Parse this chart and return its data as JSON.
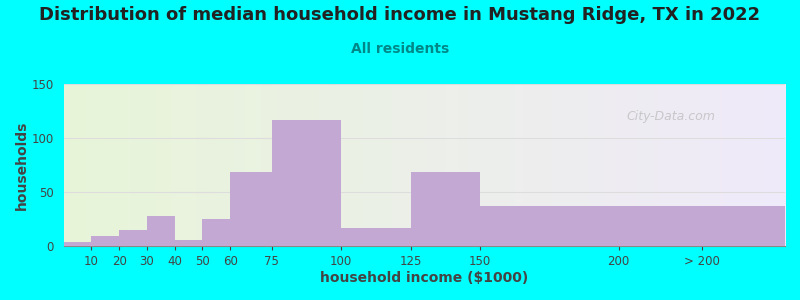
{
  "title": "Distribution of median household income in Mustang Ridge, TX in 2022",
  "subtitle": "All residents",
  "xlabel": "household income ($1000)",
  "ylabel": "households",
  "background_color": "#00FFFF",
  "bar_color": "#C4A8D4",
  "bar_left_edges": [
    0,
    10,
    20,
    30,
    40,
    50,
    60,
    75,
    100,
    125,
    150,
    200
  ],
  "bar_widths": [
    10,
    10,
    10,
    10,
    10,
    10,
    15,
    25,
    25,
    25,
    50,
    60
  ],
  "values": [
    4,
    9,
    15,
    28,
    6,
    25,
    69,
    117,
    17,
    69,
    37,
    37
  ],
  "ylim": [
    0,
    150
  ],
  "yticks": [
    0,
    50,
    100,
    150
  ],
  "xtick_positions": [
    10,
    20,
    30,
    40,
    50,
    60,
    75,
    100,
    125,
    150,
    200
  ],
  "xtick_labels": [
    "10",
    "20",
    "30",
    "40",
    "50",
    "60",
    "75",
    "100",
    "125",
    "150",
    "200"
  ],
  "xlim": [
    0,
    260
  ],
  "title_fontsize": 13,
  "subtitle_fontsize": 10,
  "axis_label_fontsize": 10,
  "tick_fontsize": 8.5,
  "watermark_text": "City-Data.com",
  "plot_bg_left_color": "#E8F5D8",
  "plot_bg_right_color": "#F0EAFA",
  "grid_color": "#DDDDDD",
  "title_color": "#222222",
  "subtitle_color": "#008888",
  "label_color": "#444444",
  "tick_color": "#444444"
}
